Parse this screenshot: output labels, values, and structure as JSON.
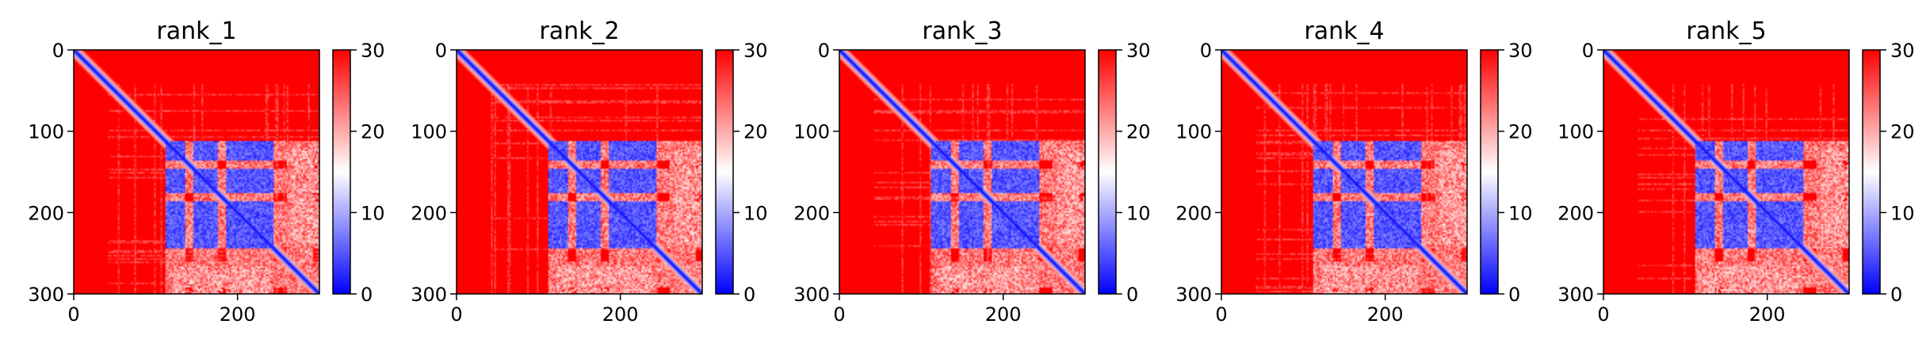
{
  "chart_data": [
    {
      "type": "heatmap",
      "title": "rank_1",
      "xlabel": "",
      "ylabel": "",
      "xlim": [
        0,
        300
      ],
      "ylim": [
        300,
        0
      ],
      "xticks": [
        "0",
        "200"
      ],
      "yticks": [
        "0",
        "100",
        "200",
        "300"
      ],
      "colorbar": {
        "ticks": [
          "0",
          "10",
          "20",
          "30"
        ],
        "range": [
          0,
          30
        ],
        "colormap": "bwr"
      },
      "description_blocks": {
        "diagonal_low": true,
        "domain_range": [
          110,
          300
        ]
      }
    },
    {
      "type": "heatmap",
      "title": "rank_2",
      "xlabel": "",
      "ylabel": "",
      "xlim": [
        0,
        300
      ],
      "ylim": [
        300,
        0
      ],
      "xticks": [
        "0",
        "200"
      ],
      "yticks": [
        "0",
        "100",
        "200",
        "300"
      ],
      "colorbar": {
        "ticks": [
          "0",
          "10",
          "20",
          "30"
        ],
        "range": [
          0,
          30
        ],
        "colormap": "bwr"
      },
      "description_blocks": {
        "diagonal_low": true,
        "domain_range": [
          110,
          300
        ]
      }
    },
    {
      "type": "heatmap",
      "title": "rank_3",
      "xlabel": "",
      "ylabel": "",
      "xlim": [
        0,
        300
      ],
      "ylim": [
        300,
        0
      ],
      "xticks": [
        "0",
        "200"
      ],
      "yticks": [
        "0",
        "100",
        "200",
        "300"
      ],
      "colorbar": {
        "ticks": [
          "0",
          "10",
          "20",
          "30"
        ],
        "range": [
          0,
          30
        ],
        "colormap": "bwr"
      },
      "description_blocks": {
        "diagonal_low": true,
        "domain_range": [
          110,
          300
        ]
      }
    },
    {
      "type": "heatmap",
      "title": "rank_4",
      "xlabel": "",
      "ylabel": "",
      "xlim": [
        0,
        300
      ],
      "ylim": [
        300,
        0
      ],
      "xticks": [
        "0",
        "200"
      ],
      "yticks": [
        "0",
        "100",
        "200",
        "300"
      ],
      "colorbar": {
        "ticks": [
          "0",
          "10",
          "20",
          "30"
        ],
        "range": [
          0,
          30
        ],
        "colormap": "bwr"
      },
      "description_blocks": {
        "diagonal_low": true,
        "domain_range": [
          110,
          300
        ]
      }
    },
    {
      "type": "heatmap",
      "title": "rank_5",
      "xlabel": "",
      "ylabel": "",
      "xlim": [
        0,
        300
      ],
      "ylim": [
        300,
        0
      ],
      "xticks": [
        "0",
        "200"
      ],
      "yticks": [
        "0",
        "100",
        "200",
        "300"
      ],
      "colorbar": {
        "ticks": [
          "0",
          "10",
          "20",
          "30"
        ],
        "range": [
          0,
          30
        ],
        "colormap": "bwr"
      },
      "description_blocks": {
        "diagonal_low": true,
        "domain_range": [
          110,
          300
        ]
      }
    }
  ],
  "colors": {
    "high": "#ff0000",
    "mid": "#ffffff",
    "low": "#0000ff"
  }
}
